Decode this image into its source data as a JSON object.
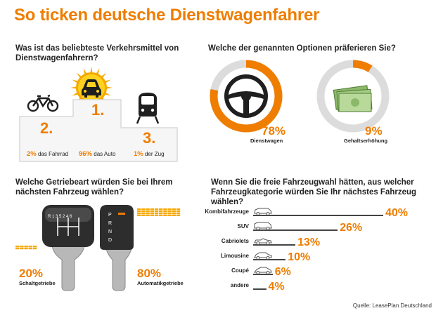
{
  "title": "So ticken deutsche Dienstwagenfahrer",
  "source": "Quelle: LeasePlan Deutschland",
  "colors": {
    "accent": "#ef7d00",
    "ring_bg": "#dcdcdc",
    "dark": "#333333"
  },
  "transport": {
    "question": "Was ist das beliebteste Verkehrsmittel von Dienstwagenfahrern?",
    "places": [
      {
        "rank": "2.",
        "pct": "2%",
        "label": "das Fahrrad",
        "icon": "bicycle-icon"
      },
      {
        "rank": "1.",
        "pct": "96%",
        "label": "das Auto",
        "icon": "car-icon"
      },
      {
        "rank": "3.",
        "pct": "1%",
        "label": "der Zug",
        "icon": "train-icon"
      }
    ]
  },
  "options": {
    "question": "Welche der genannten Optionen präferieren Sie?",
    "items": [
      {
        "pct": "78%",
        "label": "Dienstwagen",
        "icon": "steering-wheel-icon"
      },
      {
        "pct": "9%",
        "label": "Gehaltserhöhung",
        "icon": "money-icon"
      }
    ]
  },
  "gearbox": {
    "question": "Welche Getriebeart würden Sie bei Ihrem nächsten Fahrzeug wählen?",
    "manual_knob": "R 1 3 5 2 4 6",
    "auto_knob": [
      "P",
      "R",
      "N",
      "D"
    ],
    "items": [
      {
        "pct": "20%",
        "label": "Schaltgetriebe"
      },
      {
        "pct": "80%",
        "label": "Automatikgetriebe"
      }
    ]
  },
  "category": {
    "question": "Wenn Sie die freie Fahrzeugwahl hätten, aus welcher Fahrzeugkategorie würden Sie Ihr nächstes Fahrzeug wählen?"
  },
  "chart_data": [
    {
      "type": "bar",
      "categories": [
        "das Fahrrad",
        "das Auto",
        "der Zug"
      ],
      "values": [
        2,
        96,
        1
      ],
      "title": "Was ist das beliebteste Verkehrsmittel von Dienstwagenfahrern?"
    },
    {
      "type": "pie",
      "categories": [
        "Dienstwagen",
        "Gehaltserhöhung"
      ],
      "values": [
        78,
        9
      ],
      "title": "Welche der genannten Optionen präferieren Sie?"
    },
    {
      "type": "bar",
      "categories": [
        "Schaltgetriebe",
        "Automatikgetriebe"
      ],
      "values": [
        20,
        80
      ],
      "title": "Welche Getriebeart würden Sie bei Ihrem nächsten Fahrzeug wählen?"
    },
    {
      "type": "bar",
      "categories": [
        "Kombifahrzeuge",
        "SUV",
        "Cabriolets",
        "Limousine",
        "Coupé",
        "andere"
      ],
      "values": [
        40,
        26,
        13,
        10,
        6,
        4
      ],
      "labels": [
        "40%",
        "26%",
        "13%",
        "10%",
        "6%",
        "4%"
      ],
      "title": "Wenn Sie die freie Fahrzeugwahl hätten, aus welcher Fahrzeugkategorie würden Sie Ihr nächstes Fahrzeug wählen?"
    }
  ]
}
